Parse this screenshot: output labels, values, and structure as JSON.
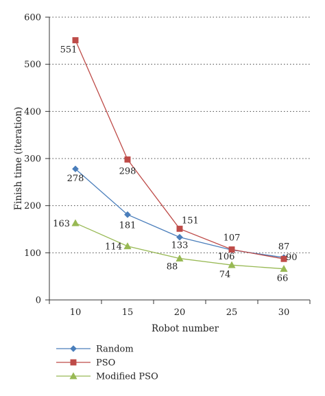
{
  "chart_data": {
    "type": "line",
    "xlabel": "Robot number",
    "ylabel": "Finish time (iteration)",
    "categories": [
      10,
      15,
      20,
      25,
      30
    ],
    "ylim": [
      0,
      600
    ],
    "yticks": [
      0,
      100,
      200,
      300,
      400,
      500,
      600
    ],
    "grid": true,
    "legend_position": "bottom-left",
    "series": [
      {
        "name": "Random",
        "values": [
          278,
          181,
          133,
          106,
          90
        ],
        "labels": [
          "278",
          "181",
          "133",
          "106",
          "90"
        ],
        "color": "#4a7ebb",
        "marker": "diamond"
      },
      {
        "name": "PSO",
        "values": [
          551,
          298,
          151,
          107,
          87
        ],
        "labels": [
          "551",
          "298",
          "151",
          "107",
          "87"
        ],
        "color": "#be4b48",
        "marker": "square"
      },
      {
        "name": "Modified PSO",
        "values": [
          163,
          114,
          88,
          74,
          66
        ],
        "labels": [
          "163",
          "114",
          "88",
          "74",
          "66"
        ],
        "color": "#98b954",
        "marker": "triangle"
      }
    ]
  }
}
